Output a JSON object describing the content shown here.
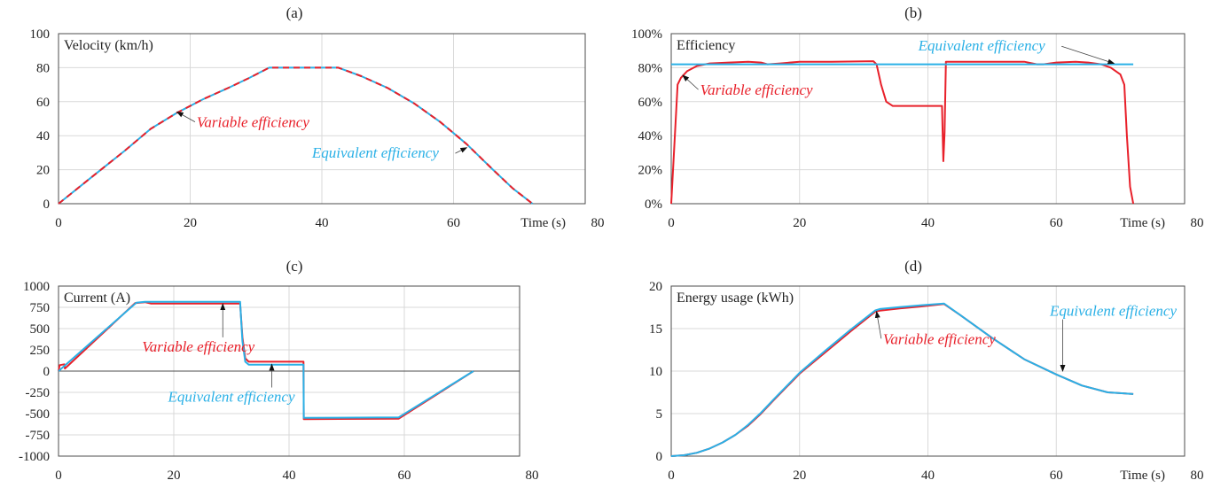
{
  "colors": {
    "variable": "#e8202a",
    "equivalent": "#2ab0e6",
    "grid": "#d9d9d9",
    "frame": "#4d4d4d"
  },
  "chart_data": [
    {
      "type": "line",
      "title": "(a)",
      "ylabel": "Velocity (km/h)",
      "xlabel": "Time (s)",
      "xlim": [
        0,
        80
      ],
      "ylim": [
        0,
        100
      ],
      "xticks": [
        "0",
        "20",
        "40",
        "60",
        "80"
      ],
      "yticks": [
        "0",
        "20",
        "40",
        "60",
        "80",
        "100"
      ],
      "grid": true,
      "series": [
        {
          "name": "Variable efficiency",
          "color": "#e8202a",
          "dashed": true,
          "x": [
            0,
            5,
            10,
            14,
            18,
            22,
            26,
            29,
            32,
            42.5,
            46,
            50,
            54,
            58,
            62,
            66,
            69,
            72
          ],
          "y": [
            0,
            15.5,
            31,
            44,
            53.5,
            61.5,
            68.5,
            74,
            80,
            80,
            75,
            68,
            59,
            48,
            35,
            20,
            9,
            0
          ]
        },
        {
          "name": "Equivalent efficiency",
          "color": "#2ab0e6",
          "dashed": false,
          "x": [
            0,
            5,
            10,
            14,
            18,
            22,
            26,
            29,
            32,
            42.5,
            46,
            50,
            54,
            58,
            62,
            66,
            69,
            72
          ],
          "y": [
            0,
            15.5,
            31,
            44,
            53.5,
            61.5,
            68.5,
            74,
            80,
            80,
            75,
            68,
            59,
            48,
            35,
            20,
            9,
            0
          ]
        }
      ],
      "annotations": [
        {
          "text": "Variable efficiency",
          "color": "#e8202a",
          "x": 21,
          "y": 45,
          "arrow_to": [
            18,
            54
          ]
        },
        {
          "text": "Equivalent efficiency",
          "color": "#2ab0e6",
          "x": 38.5,
          "y": 27,
          "arrow_to": [
            62,
            33
          ]
        }
      ]
    },
    {
      "type": "line",
      "title": "(b)",
      "ylabel": "Efficiency",
      "xlabel": "Time (s)",
      "xlim": [
        0,
        80
      ],
      "ylim": [
        0,
        1
      ],
      "xticks": [
        "0",
        "20",
        "40",
        "60",
        "80"
      ],
      "yticks": [
        "0%",
        "20%",
        "40%",
        "60%",
        "80%",
        "100%"
      ],
      "grid": true,
      "series": [
        {
          "name": "Variable efficiency",
          "color": "#e8202a",
          "dashed": false,
          "x": [
            0,
            1,
            1.5,
            2.5,
            4,
            6,
            9,
            12,
            14,
            15,
            17,
            20,
            25,
            31.5,
            32,
            32.7,
            33.5,
            34.5,
            42.2,
            42.3,
            42.4,
            42.6,
            42.8,
            45,
            50,
            55,
            57,
            58,
            60,
            63,
            65,
            67,
            68.5,
            70,
            70.6,
            71,
            71.5,
            72
          ],
          "y": [
            0,
            0.7,
            0.74,
            0.78,
            0.81,
            0.825,
            0.83,
            0.835,
            0.83,
            0.82,
            0.825,
            0.835,
            0.835,
            0.838,
            0.82,
            0.7,
            0.6,
            0.575,
            0.575,
            0.42,
            0.25,
            0.42,
            0.835,
            0.835,
            0.835,
            0.835,
            0.82,
            0.82,
            0.83,
            0.835,
            0.83,
            0.82,
            0.8,
            0.76,
            0.7,
            0.4,
            0.1,
            0
          ]
        },
        {
          "name": "Equivalent efficiency",
          "color": "#2ab0e6",
          "dashed": false,
          "x": [
            0,
            72
          ],
          "y": [
            0.82,
            0.82
          ]
        }
      ],
      "annotations": [
        {
          "text": "Variable efficiency",
          "color": "#e8202a",
          "x": 4.5,
          "y": 0.64,
          "arrow_to": [
            1.8,
            0.755
          ]
        },
        {
          "text": "Equivalent efficiency",
          "color": "#2ab0e6",
          "x": 38.5,
          "y": 0.9,
          "arrow_to": [
            69,
            0.825
          ]
        }
      ]
    },
    {
      "type": "line",
      "title": "(c)",
      "ylabel": "Current (A)",
      "xlabel": "",
      "xlim": [
        0,
        80
      ],
      "ylim": [
        -1000,
        1000
      ],
      "xticks": [
        "0",
        "20",
        "40",
        "60",
        "80"
      ],
      "yticks": [
        "-1000",
        "-750",
        "-500",
        "-250",
        "0",
        "250",
        "500",
        "750",
        "1000"
      ],
      "grid": true,
      "series": [
        {
          "name": "Variable efficiency",
          "color": "#e8202a",
          "dashed": false,
          "x": [
            0,
            0.2,
            1,
            1.1,
            13.3,
            15,
            16,
            31.5,
            31.9,
            32.4,
            33,
            42.5,
            42.55,
            59,
            72
          ],
          "y": [
            0,
            70,
            80,
            30,
            800,
            810,
            795,
            795,
            400,
            150,
            110,
            110,
            -565,
            -560,
            0
          ]
        },
        {
          "name": "Equivalent efficiency",
          "color": "#2ab0e6",
          "dashed": false,
          "x": [
            0,
            13.5,
            15,
            31.5,
            31.9,
            32.4,
            33,
            42.5,
            42.55,
            59,
            72
          ],
          "y": [
            0,
            805,
            815,
            815,
            350,
            110,
            75,
            75,
            -550,
            -545,
            0
          ]
        }
      ],
      "annotations": [
        {
          "text": "Variable efficiency",
          "color": "#e8202a",
          "x": 14.5,
          "y": 230,
          "arrow_to": [
            28.5,
            790
          ]
        },
        {
          "text": "Equivalent efficiency",
          "color": "#2ab0e6",
          "x": 19,
          "y": -360,
          "arrow_to": [
            37,
            80
          ]
        }
      ]
    },
    {
      "type": "line",
      "title": "(d)",
      "ylabel": "Energy usage (kWh)",
      "xlabel": "Time (s)",
      "xlim": [
        0,
        80
      ],
      "ylim": [
        0,
        20
      ],
      "xticks": [
        "0",
        "20",
        "40",
        "60",
        "80"
      ],
      "yticks": [
        "0",
        "5",
        "10",
        "15",
        "20"
      ],
      "grid": true,
      "series": [
        {
          "name": "Variable efficiency",
          "color": "#e8202a",
          "dashed": false,
          "x": [
            0,
            2,
            4,
            6,
            8,
            10,
            12,
            14,
            16,
            20,
            24,
            28,
            31.8,
            32.5,
            36,
            39,
            42.5,
            45,
            50,
            55,
            60,
            64,
            68,
            72
          ],
          "y": [
            0,
            0.1,
            0.4,
            0.9,
            1.6,
            2.5,
            3.6,
            5,
            6.6,
            9.7,
            12.2,
            14.7,
            17,
            17.1,
            17.4,
            17.6,
            17.9,
            16.6,
            13.9,
            11.4,
            9.6,
            8.3,
            7.5,
            7.3
          ]
        },
        {
          "name": "Equivalent efficiency",
          "color": "#2ab0e6",
          "dashed": false,
          "x": [
            0,
            2,
            4,
            6,
            8,
            10,
            12,
            14,
            16,
            20,
            24,
            28,
            31.8,
            32.5,
            36,
            39,
            42.5,
            45,
            50,
            55,
            60,
            64,
            68,
            72
          ],
          "y": [
            0,
            0.1,
            0.4,
            0.9,
            1.6,
            2.5,
            3.7,
            5.1,
            6.7,
            9.8,
            12.4,
            14.9,
            17.15,
            17.3,
            17.55,
            17.75,
            17.95,
            16.6,
            13.9,
            11.4,
            9.6,
            8.3,
            7.5,
            7.3
          ]
        }
      ],
      "annotations": [
        {
          "text": "Variable efficiency",
          "color": "#e8202a",
          "x": 33,
          "y": 13.2,
          "arrow_to": [
            32,
            17
          ]
        },
        {
          "text": "Equivalent efficiency",
          "color": "#2ab0e6",
          "x": 59,
          "y": 16.5,
          "arrow_to": [
            61,
            10
          ]
        }
      ]
    }
  ]
}
